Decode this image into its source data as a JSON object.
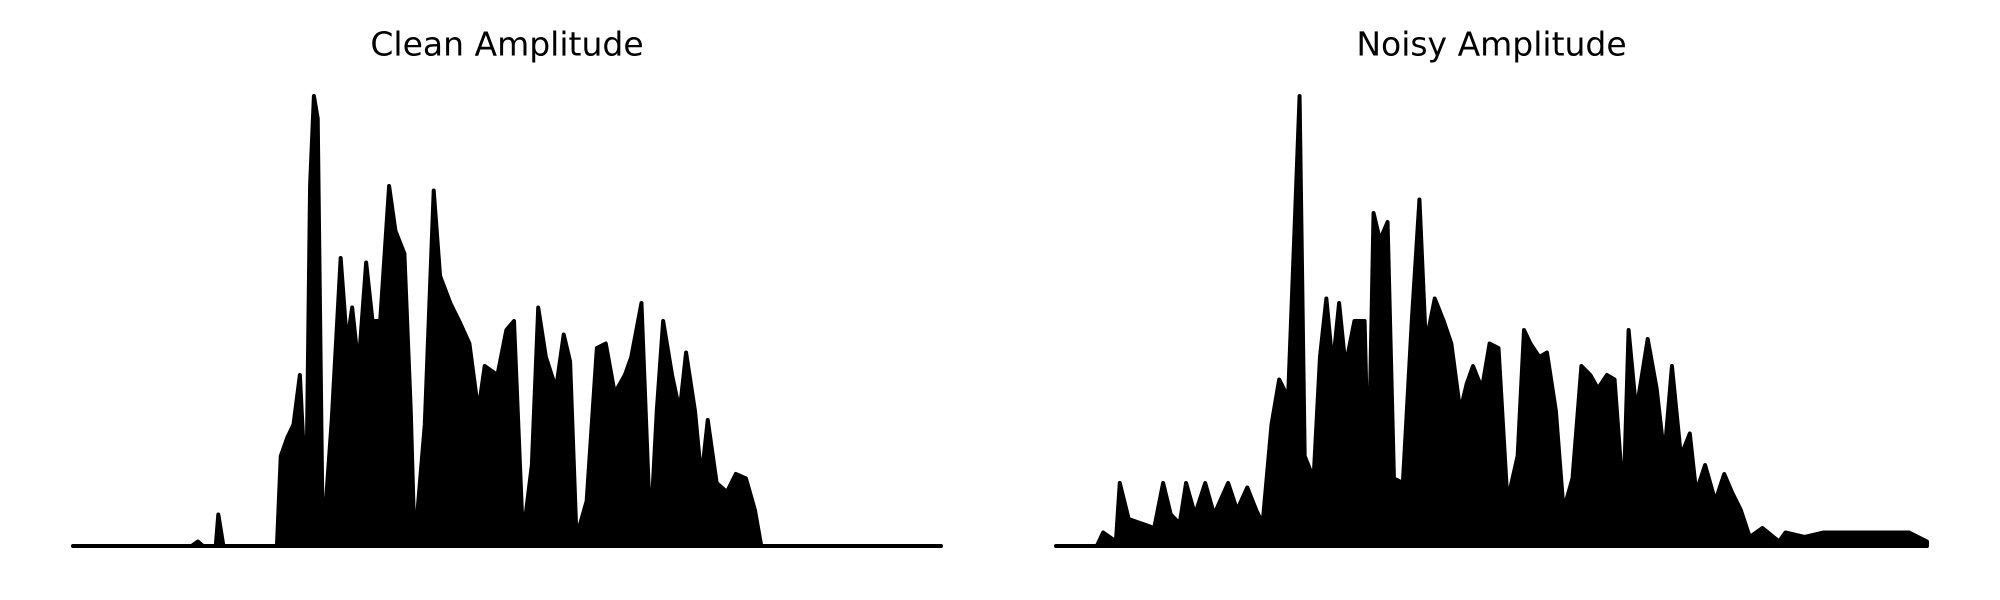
{
  "chart_data": [
    {
      "type": "area",
      "title": "Clean Amplitude",
      "color": "#000000",
      "xlim": [
        0,
        681
      ],
      "ylim": [
        0,
        1
      ],
      "x": [
        0,
        93,
        98,
        102,
        112,
        114,
        118,
        160,
        163,
        168,
        173,
        178,
        183,
        186,
        189,
        192,
        196,
        203,
        210,
        215,
        219,
        224,
        230,
        235,
        241,
        248,
        253,
        260,
        265,
        268,
        276,
        283,
        288,
        296,
        303,
        311,
        318,
        323,
        333,
        340,
        346,
        353,
        360,
        365,
        371,
        379,
        385,
        390,
        395,
        403,
        411,
        418,
        425,
        433,
        438,
        446,
        453,
        458,
        463,
        470,
        476,
        481,
        488,
        493,
        498,
        505,
        513,
        520,
        528,
        535,
        540,
        681
      ],
      "values": [
        0,
        0,
        0.01,
        0,
        0,
        0.07,
        0,
        0,
        0.2,
        0.24,
        0.27,
        0.38,
        0.1,
        0.8,
        1.0,
        0.95,
        0,
        0.28,
        0.64,
        0.45,
        0.53,
        0.4,
        0.63,
        0.5,
        0.5,
        0.8,
        0.7,
        0.65,
        0.3,
        0,
        0.27,
        0.79,
        0.6,
        0.54,
        0.5,
        0.45,
        0.3,
        0.4,
        0.38,
        0.48,
        0.5,
        0.02,
        0.18,
        0.53,
        0.42,
        0.35,
        0.47,
        0.41,
        0.02,
        0.1,
        0.44,
        0.45,
        0.34,
        0.38,
        0.42,
        0.54,
        0.03,
        0.3,
        0.5,
        0.38,
        0.3,
        0.43,
        0.3,
        0.15,
        0.28,
        0.14,
        0.12,
        0.16,
        0.15,
        0.08,
        0,
        0
      ]
    },
    {
      "type": "area",
      "title": "Noisy Amplitude",
      "color": "#000000",
      "xlim": [
        0,
        683
      ],
      "ylim": [
        0,
        1
      ],
      "x": [
        0,
        32,
        37,
        47,
        50,
        57,
        67,
        77,
        84,
        90,
        97,
        102,
        109,
        117,
        124,
        135,
        142,
        150,
        157,
        162,
        169,
        175,
        182,
        187,
        191,
        195,
        202,
        207,
        212,
        217,
        222,
        227,
        234,
        242,
        245,
        249,
        254,
        260,
        265,
        272,
        279,
        285,
        290,
        297,
        304,
        310,
        317,
        322,
        327,
        334,
        340,
        347,
        354,
        362,
        367,
        372,
        379,
        385,
        392,
        398,
        405,
        412,
        419,
        425,
        432,
        438,
        445,
        449,
        455,
        464,
        471,
        477,
        483,
        490,
        497,
        502,
        509,
        517,
        524,
        530,
        537,
        544,
        554,
        567,
        572,
        587,
        602,
        622,
        637,
        652,
        669,
        683
      ],
      "values": [
        0,
        0,
        0.03,
        0.01,
        0.14,
        0.06,
        0.05,
        0.04,
        0.14,
        0.07,
        0.05,
        0.14,
        0.07,
        0.14,
        0.07,
        0.14,
        0.08,
        0.13,
        0.08,
        0.05,
        0.27,
        0.37,
        0.33,
        0.7,
        1.0,
        0.2,
        0.15,
        0.42,
        0.55,
        0.4,
        0.54,
        0.4,
        0.5,
        0.5,
        0.15,
        0.74,
        0.68,
        0.72,
        0.15,
        0.14,
        0.5,
        0.77,
        0.45,
        0.55,
        0.5,
        0.45,
        0.3,
        0.36,
        0.4,
        0.35,
        0.45,
        0.44,
        0.1,
        0.2,
        0.48,
        0.45,
        0.42,
        0.43,
        0.3,
        0.08,
        0.15,
        0.4,
        0.38,
        0.35,
        0.38,
        0.37,
        0.1,
        0.48,
        0.3,
        0.46,
        0.35,
        0.2,
        0.4,
        0.2,
        0.25,
        0.12,
        0.18,
        0.1,
        0.16,
        0.12,
        0.08,
        0.02,
        0.04,
        0.01,
        0.03,
        0.02,
        0.03,
        0.03,
        0.03,
        0.03,
        0.03,
        0.01
      ]
    }
  ]
}
